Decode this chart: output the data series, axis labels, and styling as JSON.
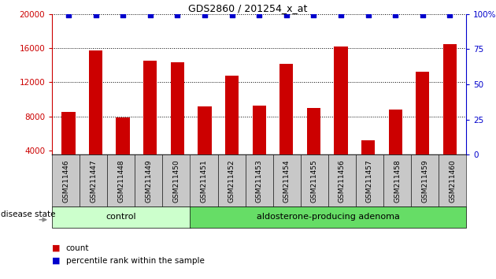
{
  "title": "GDS2860 / 201254_x_at",
  "categories": [
    "GSM211446",
    "GSM211447",
    "GSM211448",
    "GSM211449",
    "GSM211450",
    "GSM211451",
    "GSM211452",
    "GSM211453",
    "GSM211454",
    "GSM211455",
    "GSM211456",
    "GSM211457",
    "GSM211458",
    "GSM211459",
    "GSM211460"
  ],
  "counts": [
    8500,
    15700,
    7900,
    14500,
    14300,
    9200,
    12800,
    9300,
    14200,
    9000,
    16200,
    5200,
    8800,
    13200,
    16500
  ],
  "percentiles": [
    99,
    99,
    99,
    99,
    99,
    99,
    99,
    99,
    99,
    99,
    99,
    99,
    99,
    99,
    99
  ],
  "bar_color": "#cc0000",
  "percentile_color": "#0000cc",
  "ylim_left": [
    3500,
    20000
  ],
  "ylim_right": [
    0,
    100
  ],
  "yticks_left": [
    4000,
    8000,
    12000,
    16000,
    20000
  ],
  "yticks_right": [
    0,
    25,
    50,
    75,
    100
  ],
  "ytick_labels_right": [
    "0",
    "25",
    "50",
    "75",
    "100%"
  ],
  "grid_values": [
    8000,
    12000,
    16000,
    20000
  ],
  "control_count": 5,
  "adenoma_count": 10,
  "group_label_control": "control",
  "group_label_adenoma": "aldosterone-producing adenoma",
  "disease_state_label": "disease state",
  "legend_count_label": "count",
  "legend_percentile_label": "percentile rank within the sample",
  "control_color": "#ccffcc",
  "adenoma_color": "#66dd66",
  "xlabel_area_color": "#c8c8c8",
  "bar_width": 0.5
}
